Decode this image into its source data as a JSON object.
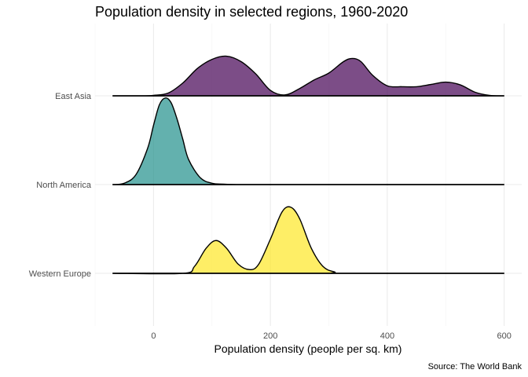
{
  "chart_data": {
    "type": "ridgeline",
    "title": "Population density in selected regions, 1960-2020",
    "xlabel": "Population density (people per sq. km)",
    "ylabel": "",
    "caption": "Source: The World Bank",
    "xlim": [
      -100,
      630
    ],
    "x_ticks": [
      0,
      200,
      400,
      600
    ],
    "x_tick_labels": [
      "0",
      "200",
      "400",
      "600"
    ],
    "grid": true,
    "legend": "none",
    "categories": [
      "East Asia",
      "North America",
      "Western Europe"
    ],
    "series": [
      {
        "category": "East Asia",
        "color": "#440154",
        "x": [
          -70,
          -50,
          -25,
          0,
          25,
          50,
          75,
          100,
          125,
          150,
          175,
          200,
          225,
          250,
          275,
          300,
          325,
          340,
          355,
          375,
          400,
          425,
          450,
          475,
          500,
          525,
          550,
          575,
          600
        ],
        "y": [
          0,
          0,
          0,
          0.01,
          0.06,
          0.28,
          0.6,
          0.8,
          0.87,
          0.75,
          0.48,
          0.12,
          0.02,
          0.16,
          0.35,
          0.5,
          0.75,
          0.82,
          0.75,
          0.45,
          0.22,
          0.2,
          0.2,
          0.25,
          0.3,
          0.24,
          0.08,
          0.01,
          0
        ]
      },
      {
        "category": "North America",
        "color": "#21908C",
        "x": [
          -70,
          -50,
          -30,
          -10,
          0,
          10,
          20,
          30,
          40,
          50,
          60,
          80,
          100,
          120,
          150,
          200,
          600
        ],
        "y": [
          0,
          0.03,
          0.22,
          0.8,
          1.3,
          1.75,
          1.9,
          1.8,
          1.45,
          1.0,
          0.55,
          0.15,
          0.03,
          0.01,
          0,
          0,
          0
        ]
      },
      {
        "category": "Western Europe",
        "color": "#FDE725",
        "x": [
          -70,
          50,
          70,
          90,
          107,
          125,
          145,
          165,
          180,
          200,
          220,
          235,
          250,
          270,
          290,
          310,
          330,
          600
        ],
        "y": [
          0,
          0,
          0.15,
          0.55,
          0.72,
          0.55,
          0.2,
          0.08,
          0.2,
          0.75,
          1.35,
          1.45,
          1.2,
          0.55,
          0.15,
          0.03,
          0,
          0
        ]
      }
    ]
  }
}
